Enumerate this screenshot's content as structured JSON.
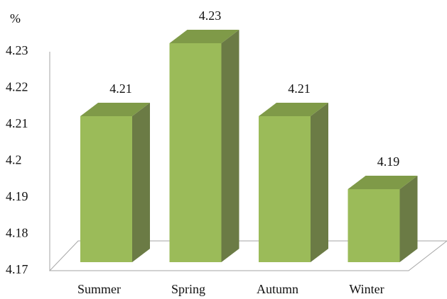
{
  "chart_data": {
    "type": "bar3d",
    "y_axis_label": "%",
    "categories": [
      "Summer",
      "Spring",
      "Autumn",
      "Winter"
    ],
    "values": [
      4.21,
      4.23,
      4.21,
      4.19
    ],
    "color": "#9bbb59",
    "ylim": [
      4.17,
      4.23
    ],
    "yticks": [
      4.17,
      4.18,
      4.19,
      4.2,
      4.21,
      4.22,
      4.23
    ]
  }
}
